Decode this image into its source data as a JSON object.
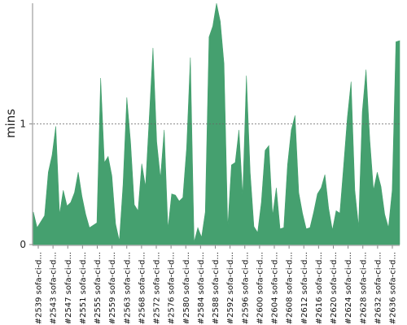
{
  "chart_data": {
    "type": "area",
    "ylabel": "mins",
    "ylim": [
      0,
      2
    ],
    "yticks": [
      0,
      1
    ],
    "reference_line": 1,
    "color": "#45a06f",
    "x_tick_labels": [
      "#2539 sofa-ci-d...",
      "#2543 sofa-ci-d...",
      "#2547 sofa-ci-d...",
      "#2551 sofa-ci-d...",
      "#2555 sofa-ci-d...",
      "#2559 sofa-ci-d...",
      "#2563 sofa-ci-d...",
      "#2568 sofa-ci-d...",
      "#2572 sofa-ci-d...",
      "#2576 sofa-ci-d...",
      "#2580 sofa-ci-d...",
      "#2584 sofa-ci-d...",
      "#2588 sofa-ci-d...",
      "#2592 sofa-ci-d...",
      "#2596 sofa-ci-d...",
      "#2600 sofa-ci-d...",
      "#2604 sofa-ci-d...",
      "#2608 sofa-ci-d...",
      "#2612 sofa-ci-d...",
      "#2616 sofa-ci-d...",
      "#2620 sofa-ci-d...",
      "#2624 sofa-ci-d...",
      "#2628 sofa-ci-d...",
      "#2632 sofa-ci-d...",
      "#2636 sofa-ci-d..."
    ],
    "values": [
      0.27,
      0.14,
      0.19,
      0.24,
      0.6,
      0.74,
      0.98,
      0.25,
      0.45,
      0.32,
      0.35,
      0.43,
      0.6,
      0.4,
      0.25,
      0.14,
      0.16,
      0.18,
      1.38,
      0.68,
      0.73,
      0.57,
      0.17,
      0.03,
      0.5,
      1.22,
      0.85,
      0.33,
      0.28,
      0.67,
      0.48,
      1.05,
      1.63,
      0.85,
      0.55,
      0.95,
      0.13,
      0.42,
      0.41,
      0.36,
      0.39,
      0.8,
      1.55,
      0.02,
      0.14,
      0.06,
      0.27,
      1.72,
      1.81,
      2.0,
      1.85,
      1.5,
      0.14,
      0.66,
      0.68,
      0.95,
      0.4,
      1.4,
      0.6,
      0.15,
      0.1,
      0.35,
      0.78,
      0.82,
      0.24,
      0.47,
      0.13,
      0.14,
      0.66,
      0.95,
      1.07,
      0.43,
      0.26,
      0.13,
      0.14,
      0.27,
      0.42,
      0.47,
      0.58,
      0.3,
      0.12,
      0.28,
      0.26,
      0.65,
      1.05,
      1.35,
      0.45,
      0.15,
      1.1,
      1.45,
      0.87,
      0.45,
      0.6,
      0.48,
      0.25,
      0.14,
      0.45,
      1.68,
      1.69
    ]
  }
}
